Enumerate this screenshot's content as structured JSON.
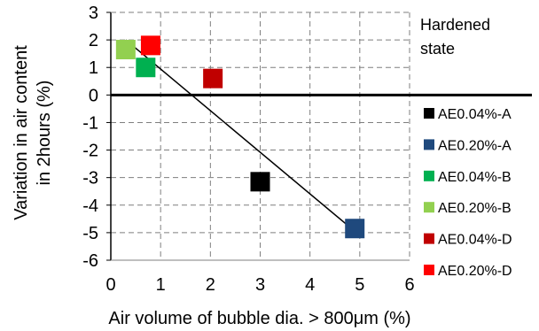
{
  "chart_data": {
    "type": "scatter",
    "xlabel_prefix": "Air volume of bubble dia. > 800",
    "xlabel_mu": "μ",
    "xlabel_suffix": "m (%)",
    "ylabel_line1": "Variation in air content",
    "ylabel_line2": "in 2hours (%)",
    "xlim": [
      0,
      6
    ],
    "ylim": [
      -6,
      3
    ],
    "xticks": [
      "0",
      "1",
      "2",
      "3",
      "4",
      "5",
      "6"
    ],
    "yticks": [
      "3",
      "2",
      "1",
      "0",
      "-1",
      "-2",
      "-3",
      "-4",
      "-5",
      "-6"
    ],
    "grid": true,
    "grid_style": "dashed",
    "legend_title_line1": "Hardened",
    "legend_title_line2": "state",
    "legend_position": "right",
    "series": [
      {
        "name": "AE0.04%-A",
        "color": "#000000",
        "points": [
          [
            3.0,
            -3.15
          ]
        ]
      },
      {
        "name": "AE0.20%-A",
        "color": "#1f497d",
        "points": [
          [
            4.9,
            -4.85
          ]
        ]
      },
      {
        "name": "AE0.04%-B",
        "color": "#00b050",
        "points": [
          [
            0.7,
            1.0
          ]
        ]
      },
      {
        "name": "AE0.20%-B",
        "color": "#92d050",
        "points": [
          [
            0.3,
            1.65
          ]
        ]
      },
      {
        "name": "AE0.04%-D",
        "color": "#c00000",
        "points": [
          [
            2.05,
            0.6
          ]
        ]
      },
      {
        "name": "AE0.20%-D",
        "color": "#ff0000",
        "points": [
          [
            0.8,
            1.8
          ]
        ]
      }
    ],
    "trendline": {
      "x": [
        0.3,
        4.9
      ],
      "y": [
        2.0,
        -4.95
      ]
    }
  }
}
